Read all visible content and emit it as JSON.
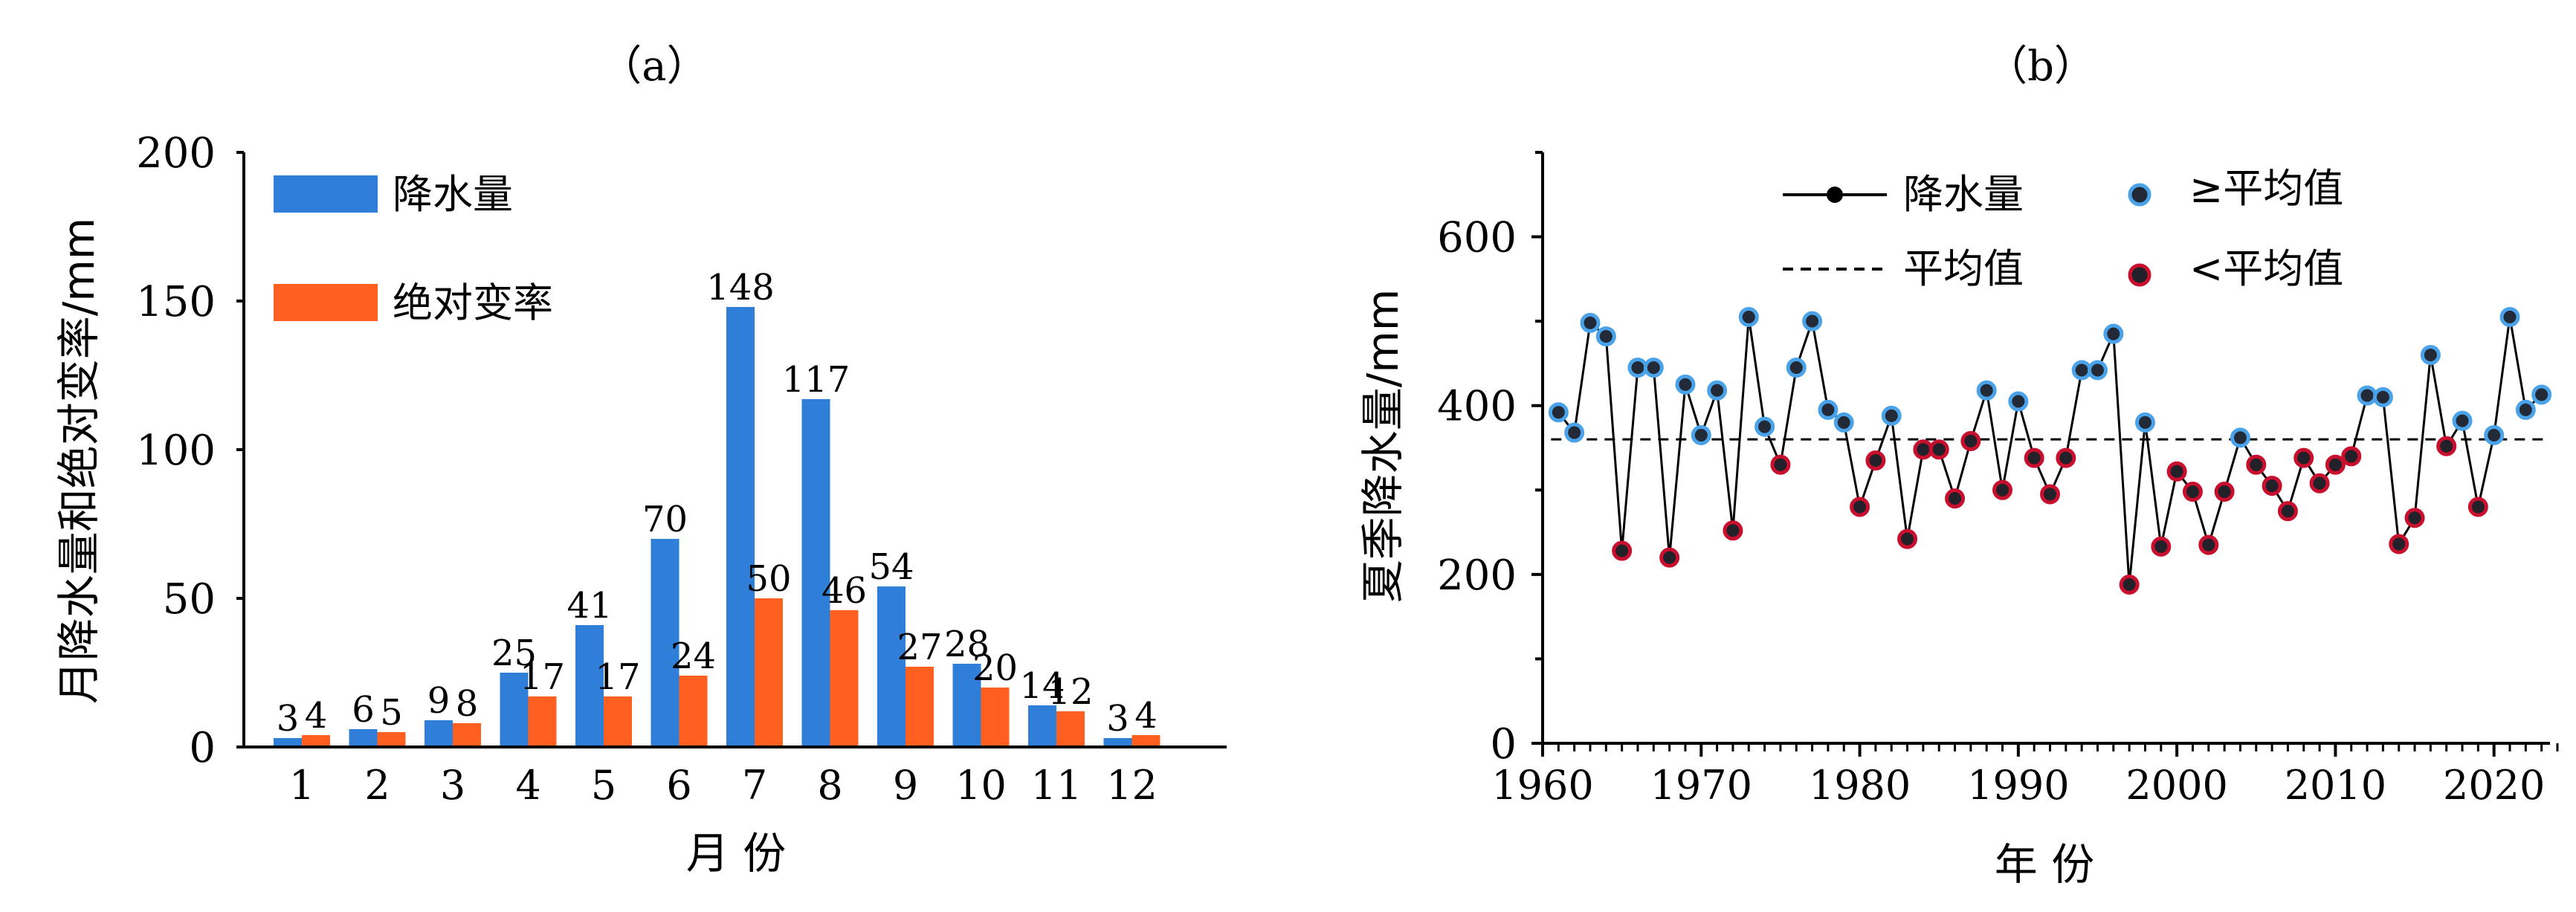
{
  "chart_data": [
    {
      "panel_label": "（a）",
      "type": "bar",
      "categories": [
        "1",
        "2",
        "3",
        "4",
        "5",
        "6",
        "7",
        "8",
        "9",
        "10",
        "11",
        "12"
      ],
      "series": [
        {
          "name": "降水量",
          "values": [
            3,
            6,
            9,
            25,
            41,
            70,
            148,
            117,
            54,
            28,
            14,
            3
          ],
          "color": "#2f7fd9"
        },
        {
          "name": "绝对变率",
          "values": [
            4,
            5,
            8,
            17,
            17,
            24,
            50,
            46,
            27,
            20,
            12,
            4
          ],
          "color": "#ff6020"
        }
      ],
      "xlabel": "月 份",
      "ylabel": "月降水量和绝对变率/mm",
      "ylim": [
        0,
        200
      ],
      "yticks": [
        "0",
        "50",
        "100",
        "150",
        "200"
      ],
      "legend": "top-left",
      "grid": false
    },
    {
      "panel_label": "（b）",
      "type": "line",
      "x": [
        1961,
        1962,
        1963,
        1964,
        1965,
        1966,
        1967,
        1968,
        1969,
        1970,
        1971,
        1972,
        1973,
        1974,
        1975,
        1976,
        1977,
        1978,
        1979,
        1980,
        1981,
        1982,
        1983,
        1984,
        1985,
        1986,
        1987,
        1988,
        1989,
        1990,
        1991,
        1992,
        1993,
        1994,
        1995,
        1996,
        1997,
        1998,
        1999,
        2000,
        2001,
        2002,
        2003,
        2004,
        2005,
        2006,
        2007,
        2008,
        2009,
        2010,
        2011,
        2012,
        2013,
        2014,
        2015,
        2016,
        2017,
        2018,
        2019,
        2020,
        2021,
        2022,
        2023
      ],
      "series": [
        {
          "name": "降水量",
          "values": [
            392,
            368,
            498,
            482,
            228,
            445,
            445,
            220,
            425,
            365,
            418,
            252,
            505,
            375,
            330,
            445,
            500,
            395,
            380,
            280,
            335,
            388,
            242,
            348,
            348,
            290,
            358,
            418,
            300,
            405,
            338,
            295,
            338,
            442,
            442,
            485,
            188,
            380,
            233,
            322,
            298,
            235,
            298,
            362,
            330,
            305,
            275,
            338,
            308,
            330,
            340,
            412,
            410,
            236,
            267,
            460,
            352,
            382,
            280,
            365,
            505,
            395,
            413
          ],
          "color": "#000000"
        }
      ],
      "mean": {
        "name": "平均值",
        "value": 360
      },
      "marker_legend": {
        "above": "≥平均值",
        "below": "<平均值"
      },
      "colors": {
        "above_fill": "#222a38",
        "above_ring": "#4aa3e8",
        "below_fill": "#222028",
        "below_ring": "#c8102e"
      },
      "xlabel": "年 份",
      "ylabel": "夏季降水量/mm",
      "xlim": [
        1960,
        2024
      ],
      "ylim": [
        0,
        700
      ],
      "xticks": [
        "1960",
        "1970",
        "1980",
        "1990",
        "2000",
        "2010",
        "2020"
      ],
      "yticks": [
        "0",
        "200",
        "400",
        "600"
      ],
      "legend": "top",
      "grid": false
    }
  ]
}
